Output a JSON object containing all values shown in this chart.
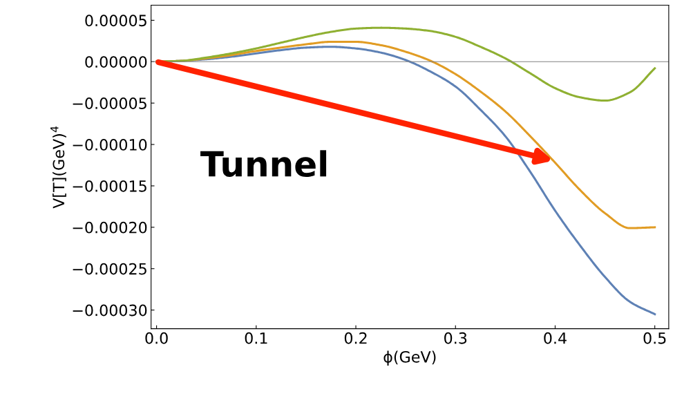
{
  "chart_data": {
    "type": "line",
    "xlabel": "ϕ(GeV)",
    "ylabel": "V[T](GeV)$^{4}$",
    "xlim": [
      -0.0055,
      0.514
    ],
    "ylim": [
      -0.0003225,
      6.83e-05
    ],
    "xticks": [
      {
        "value": 0,
        "label": "0.0"
      },
      0.1,
      0.2,
      0.3,
      0.4,
      0.5
    ],
    "yticks": [
      {
        "value": 5e-05,
        "label": "0.00005"
      },
      {
        "value": 0,
        "label": "0.00000"
      },
      {
        "value": -5e-05,
        "label": "−0.00005"
      },
      {
        "value": -0.0001,
        "label": "−0.00010"
      },
      {
        "value": -0.00015,
        "label": "−0.00015"
      },
      {
        "value": -0.0002,
        "label": "−0.00020"
      },
      {
        "value": -0.00025,
        "label": "−0.00025"
      },
      {
        "value": -0.0003,
        "label": "−0.00030"
      }
    ],
    "grid": false,
    "legend": false,
    "ref_lines": [
      {
        "axis": "y",
        "value": 0,
        "color": "#808080"
      }
    ],
    "annotations": [
      "Tunnel"
    ],
    "x": [
      0,
      0.025,
      0.05,
      0.075,
      0.1,
      0.125,
      0.15,
      0.175,
      0.2,
      0.225,
      0.25,
      0.275,
      0.3,
      0.325,
      0.35,
      0.375,
      0.4,
      0.425,
      0.45,
      0.475,
      0.5
    ],
    "series": [
      {
        "color": "#5e81b5",
        "values": [
          0,
          1e-06,
          3e-06,
          6e-06,
          1e-05,
          1.4e-05,
          1.7e-05,
          1.8e-05,
          1.6e-05,
          1.1e-05,
          2e-06,
          -1.2e-05,
          -3e-05,
          -5.8e-05,
          -9e-05,
          -0.000133,
          -0.00018,
          -0.000222,
          -0.00026,
          -0.00029,
          -0.000305
        ]
      },
      {
        "color": "#e19c24",
        "values": [
          0,
          1e-06,
          4e-06,
          8e-06,
          1.3e-05,
          1.7e-05,
          2.1e-05,
          2.4e-05,
          2.4e-05,
          2e-05,
          1.2e-05,
          1e-06,
          -1.5e-05,
          -3.6e-05,
          -6e-05,
          -9e-05,
          -0.000122,
          -0.000155,
          -0.000183,
          -0.000201,
          -0.0002
        ]
      },
      {
        "color": "#8fb032",
        "values": [
          0,
          1e-06,
          5e-06,
          1e-05,
          1.6e-05,
          2.3e-05,
          3e-05,
          3.6e-05,
          4e-05,
          4.1e-05,
          4e-05,
          3.7e-05,
          3e-05,
          1.8e-05,
          4e-06,
          -1.4e-05,
          -3.2e-05,
          -4.3e-05,
          -4.7e-05,
          -3.7e-05,
          -8e-06
        ]
      }
    ]
  }
}
